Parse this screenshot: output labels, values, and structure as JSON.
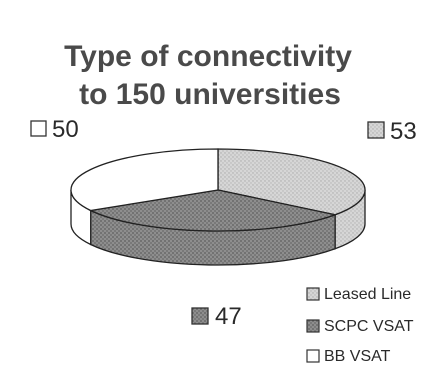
{
  "chart_data": {
    "type": "pie",
    "title_lines": [
      "Type of connectivity",
      "to 150 universities"
    ],
    "categories": [
      "Leased Line",
      "SCPC VSAT",
      "BB VSAT"
    ],
    "values": [
      53,
      47,
      50
    ],
    "data_labels": [
      "53",
      "47",
      "50"
    ],
    "colors": {
      "Leased Line": "#d2d2d2",
      "SCPC VSAT": "#8c8c8c",
      "BB VSAT": "#ffffff"
    },
    "style": "3d-pie",
    "legend_position": "bottom-right"
  }
}
